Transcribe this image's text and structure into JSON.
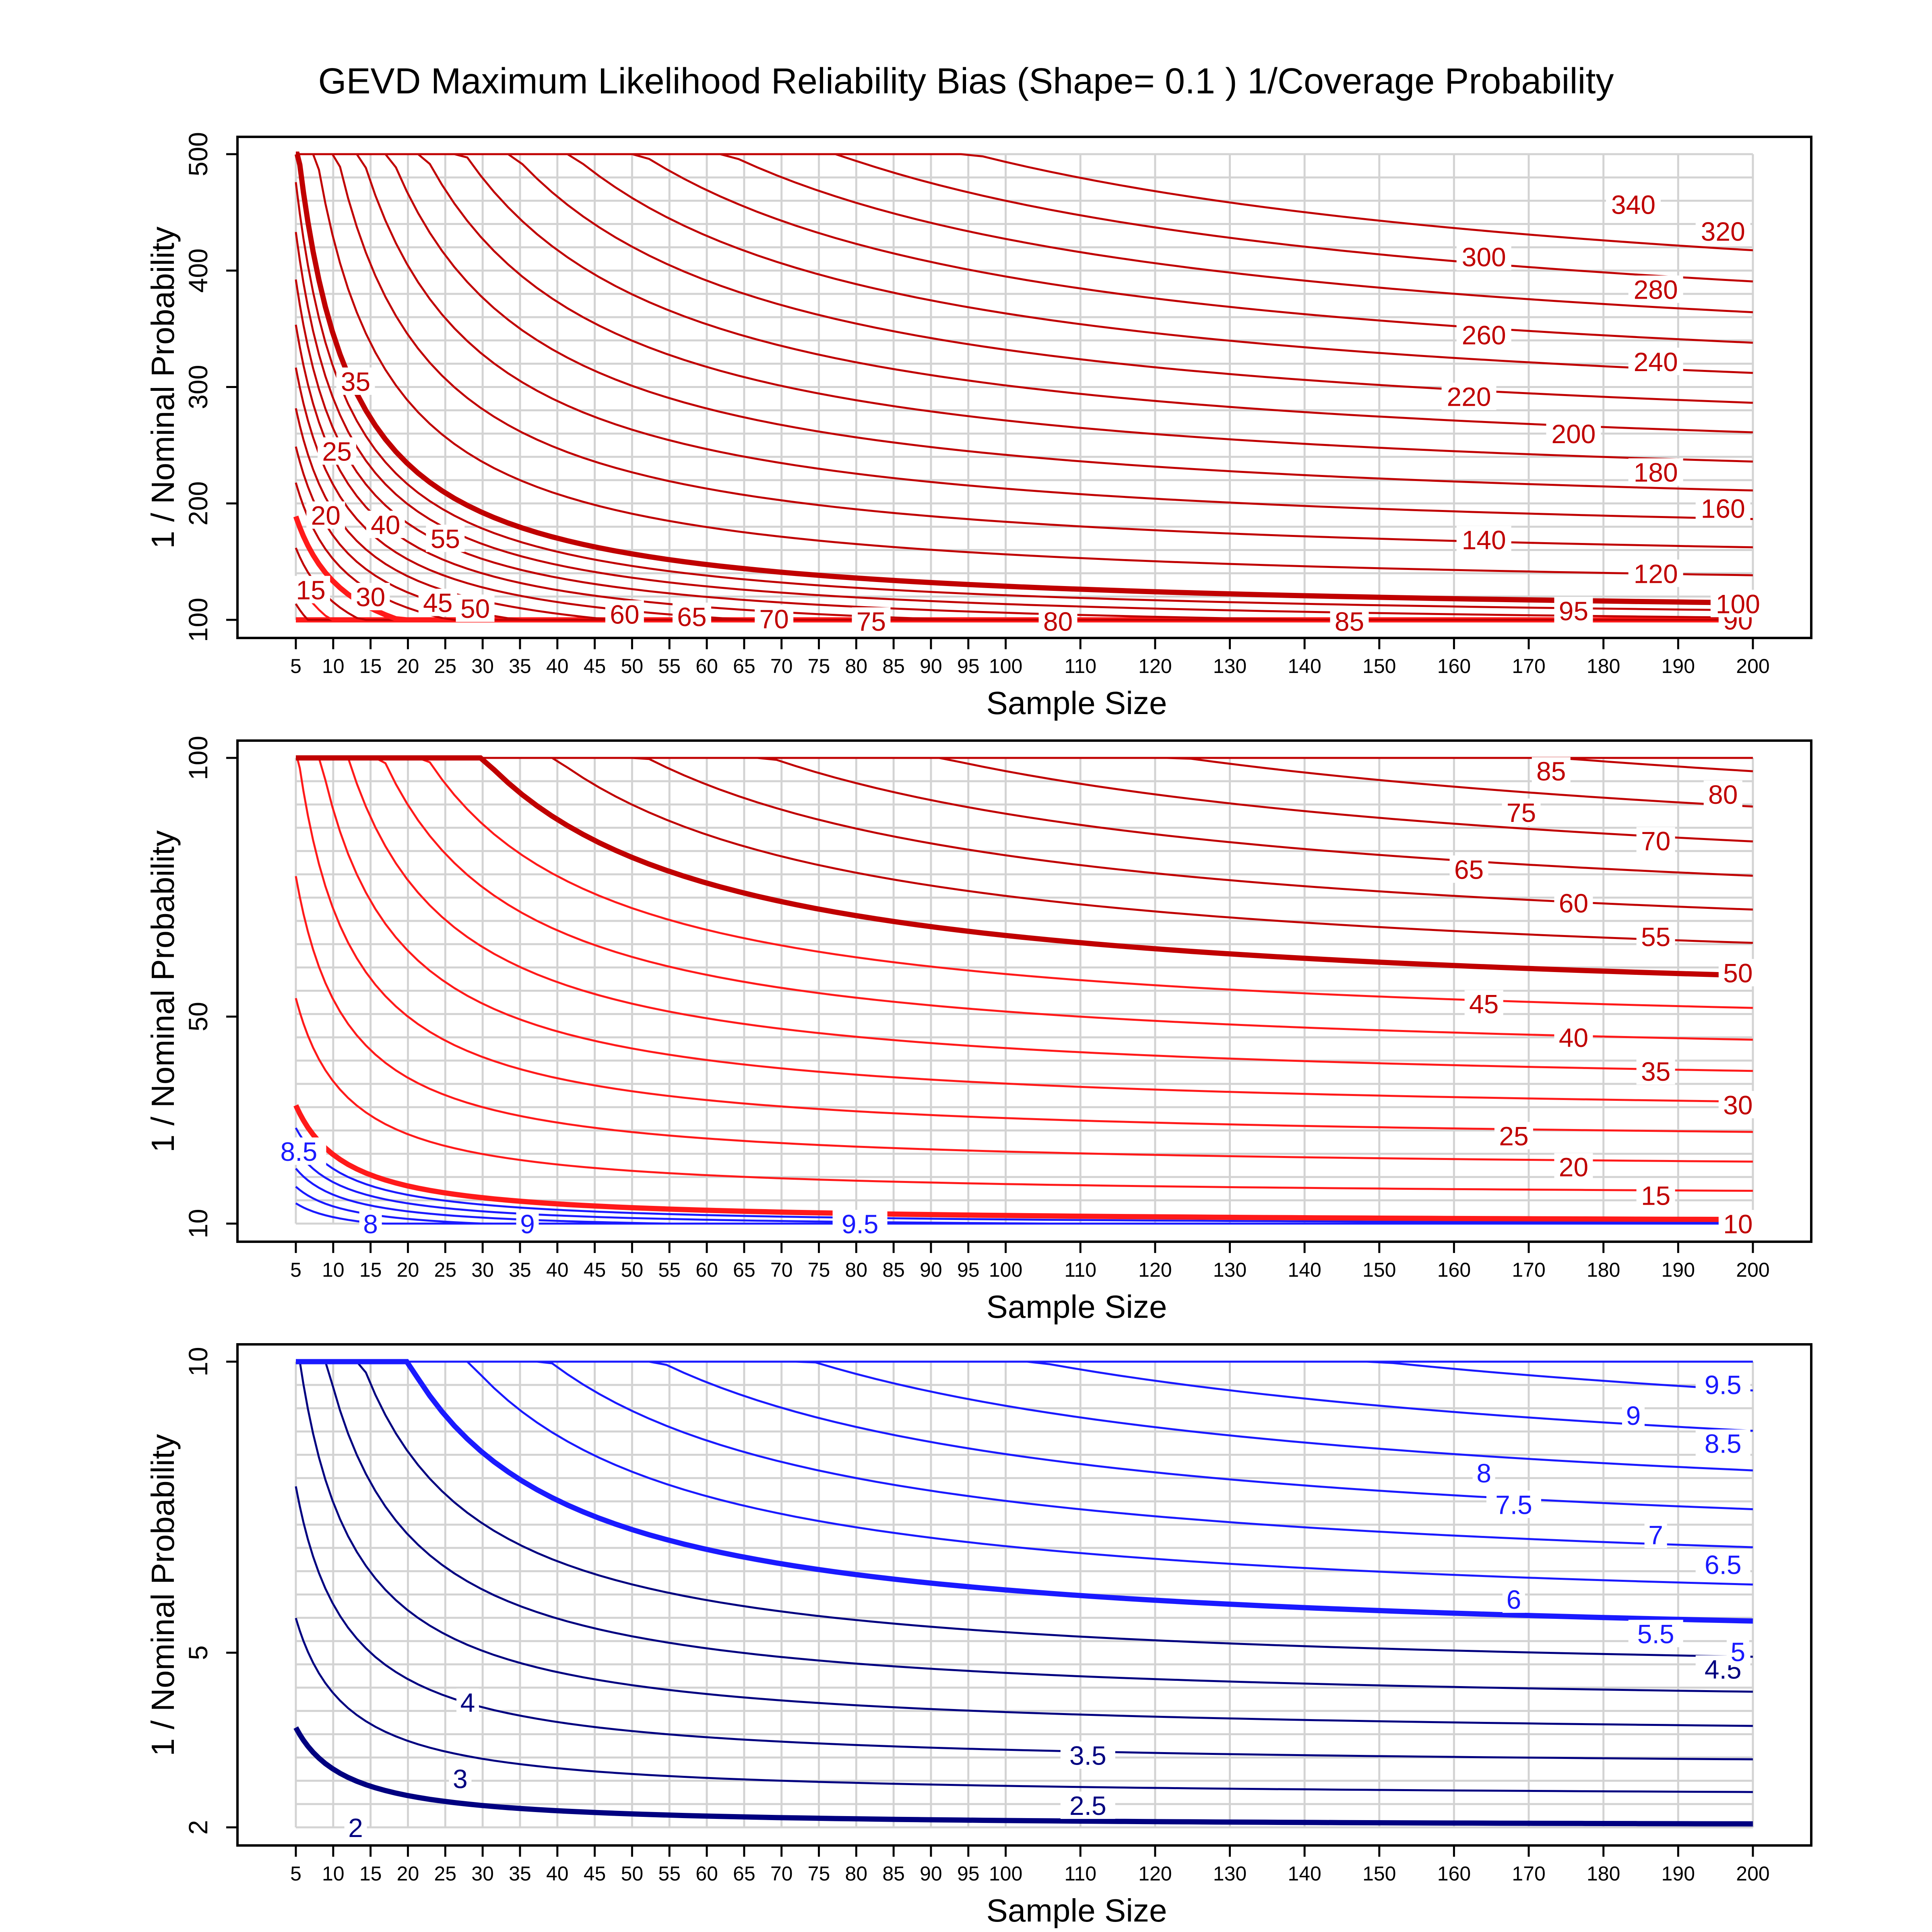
{
  "title": "GEVD Maximum Likelihood Reliability Bias (Shape= 0.1 ) 1/Coverage Probability",
  "colors": {
    "red": "#ff1a1a",
    "dark_red": "#c00000",
    "blue": "#1a1aff",
    "dark_blue": "#000080",
    "grid": "#d3d3d3",
    "frame": "#000000"
  },
  "chart_data": [
    {
      "type": "contour",
      "xlabel": "Sample Size",
      "ylabel": "1 / Nominal Probability",
      "xlim": [
        5,
        200
      ],
      "ylim": [
        100,
        500
      ],
      "x_ticks": [
        5,
        10,
        15,
        20,
        25,
        30,
        35,
        40,
        45,
        50,
        55,
        60,
        65,
        70,
        75,
        80,
        85,
        90,
        95,
        100,
        110,
        120,
        130,
        140,
        150,
        160,
        170,
        180,
        190,
        200
      ],
      "y_ticks": [
        100,
        200,
        300,
        400,
        500
      ],
      "grid": true,
      "contour_levels": [
        15,
        20,
        25,
        30,
        35,
        40,
        45,
        50,
        55,
        60,
        65,
        70,
        75,
        80,
        85,
        90,
        95,
        100,
        120,
        140,
        160,
        180,
        200,
        220,
        240,
        260,
        280,
        300,
        320,
        340
      ],
      "labels": [
        {
          "text": "15",
          "x": 7,
          "y": 126
        },
        {
          "text": "20",
          "x": 9,
          "y": 190
        },
        {
          "text": "25",
          "x": 10.5,
          "y": 245
        },
        {
          "text": "30",
          "x": 15,
          "y": 120
        },
        {
          "text": "35",
          "x": 13,
          "y": 305
        },
        {
          "text": "40",
          "x": 17,
          "y": 182
        },
        {
          "text": "45",
          "x": 24,
          "y": 115
        },
        {
          "text": "50",
          "x": 29,
          "y": 110
        },
        {
          "text": "55",
          "x": 25,
          "y": 170
        },
        {
          "text": "60",
          "x": 49,
          "y": 105
        },
        {
          "text": "65",
          "x": 58,
          "y": 103
        },
        {
          "text": "70",
          "x": 69,
          "y": 101
        },
        {
          "text": "75",
          "x": 82,
          "y": 99
        },
        {
          "text": "80",
          "x": 107,
          "y": 99
        },
        {
          "text": "85",
          "x": 146,
          "y": 99
        },
        {
          "text": "90",
          "x": 198,
          "y": 100
        },
        {
          "text": "95",
          "x": 176,
          "y": 108
        },
        {
          "text": "100",
          "x": 198,
          "y": 114
        },
        {
          "text": "120",
          "x": 187,
          "y": 140
        },
        {
          "text": "140",
          "x": 164,
          "y": 169
        },
        {
          "text": "160",
          "x": 196,
          "y": 196
        },
        {
          "text": "180",
          "x": 187,
          "y": 227
        },
        {
          "text": "200",
          "x": 176,
          "y": 260
        },
        {
          "text": "220",
          "x": 162,
          "y": 292
        },
        {
          "text": "240",
          "x": 187,
          "y": 322
        },
        {
          "text": "260",
          "x": 164,
          "y": 345
        },
        {
          "text": "280",
          "x": 187,
          "y": 384
        },
        {
          "text": "300",
          "x": 164,
          "y": 412
        },
        {
          "text": "320",
          "x": 196,
          "y": 434
        },
        {
          "text": "340",
          "x": 184,
          "y": 457
        }
      ]
    },
    {
      "type": "contour",
      "xlabel": "Sample Size",
      "ylabel": "1 / Nominal Probability",
      "xlim": [
        5,
        200
      ],
      "ylim": [
        10,
        100
      ],
      "x_ticks": [
        5,
        10,
        15,
        20,
        25,
        30,
        35,
        40,
        45,
        50,
        55,
        60,
        65,
        70,
        75,
        80,
        85,
        90,
        95,
        100,
        110,
        120,
        130,
        140,
        150,
        160,
        170,
        180,
        190,
        200
      ],
      "y_ticks": [
        10,
        50,
        100
      ],
      "grid": true,
      "contour_levels": [
        7.5,
        8,
        8.5,
        9,
        9.5,
        10,
        15,
        20,
        25,
        30,
        35,
        40,
        45,
        50,
        55,
        60,
        65,
        70,
        75,
        80,
        85
      ],
      "labels": [
        {
          "text": "8.5",
          "x": 5.4,
          "y": 24
        },
        {
          "text": "8",
          "x": 15,
          "y": 10
        },
        {
          "text": "9",
          "x": 36,
          "y": 10
        },
        {
          "text": "9.5",
          "x": 80.5,
          "y": 10
        },
        {
          "text": "10",
          "x": 198,
          "y": 10
        },
        {
          "text": "15",
          "x": 187,
          "y": 15.5
        },
        {
          "text": "20",
          "x": 176,
          "y": 21
        },
        {
          "text": "25",
          "x": 168,
          "y": 27
        },
        {
          "text": "30",
          "x": 198,
          "y": 33
        },
        {
          "text": "35",
          "x": 187,
          "y": 39.5
        },
        {
          "text": "40",
          "x": 176,
          "y": 46
        },
        {
          "text": "45",
          "x": 164,
          "y": 52.5
        },
        {
          "text": "50",
          "x": 198,
          "y": 58.5
        },
        {
          "text": "55",
          "x": 187,
          "y": 65.5
        },
        {
          "text": "60",
          "x": 176,
          "y": 72
        },
        {
          "text": "65",
          "x": 162,
          "y": 78.5
        },
        {
          "text": "70",
          "x": 187,
          "y": 84
        },
        {
          "text": "75",
          "x": 169,
          "y": 89.5
        },
        {
          "text": "80",
          "x": 196,
          "y": 93
        },
        {
          "text": "85",
          "x": 173,
          "y": 97.5
        }
      ]
    },
    {
      "type": "contour",
      "xlabel": "Sample Size",
      "ylabel": "1 / Nominal Probability",
      "xlim": [
        5,
        200
      ],
      "ylim": [
        2,
        10
      ],
      "x_ticks": [
        5,
        10,
        15,
        20,
        25,
        30,
        35,
        40,
        45,
        50,
        55,
        60,
        65,
        70,
        75,
        80,
        85,
        90,
        95,
        100,
        110,
        120,
        130,
        140,
        150,
        160,
        170,
        180,
        190,
        200
      ],
      "y_ticks": [
        2,
        5,
        10
      ],
      "grid": true,
      "contour_levels": [
        2,
        2.5,
        3,
        3.5,
        4,
        4.5,
        5,
        5.5,
        6,
        6.5,
        7,
        7.5,
        8,
        8.5,
        9,
        9.5
      ],
      "labels": [
        {
          "text": "2",
          "x": 13,
          "y": 2
        },
        {
          "text": "2.5",
          "x": 111,
          "y": 2.38
        },
        {
          "text": "3",
          "x": 27,
          "y": 2.84
        },
        {
          "text": "3.5",
          "x": 111,
          "y": 3.24
        },
        {
          "text": "4",
          "x": 28,
          "y": 4.15
        },
        {
          "text": "4.5",
          "x": 196,
          "y": 4.72
        },
        {
          "text": "5",
          "x": 198,
          "y": 5.02
        },
        {
          "text": "5.5",
          "x": 187,
          "y": 5.33
        },
        {
          "text": "6",
          "x": 168,
          "y": 5.92
        },
        {
          "text": "6.5",
          "x": 196,
          "y": 6.52
        },
        {
          "text": "7",
          "x": 187,
          "y": 7.03
        },
        {
          "text": "7.5",
          "x": 168,
          "y": 7.55
        },
        {
          "text": "8",
          "x": 164,
          "y": 8.09
        },
        {
          "text": "8.5",
          "x": 196,
          "y": 8.6
        },
        {
          "text": "9",
          "x": 184,
          "y": 9.08
        },
        {
          "text": "9.5",
          "x": 196,
          "y": 9.61
        }
      ]
    }
  ]
}
